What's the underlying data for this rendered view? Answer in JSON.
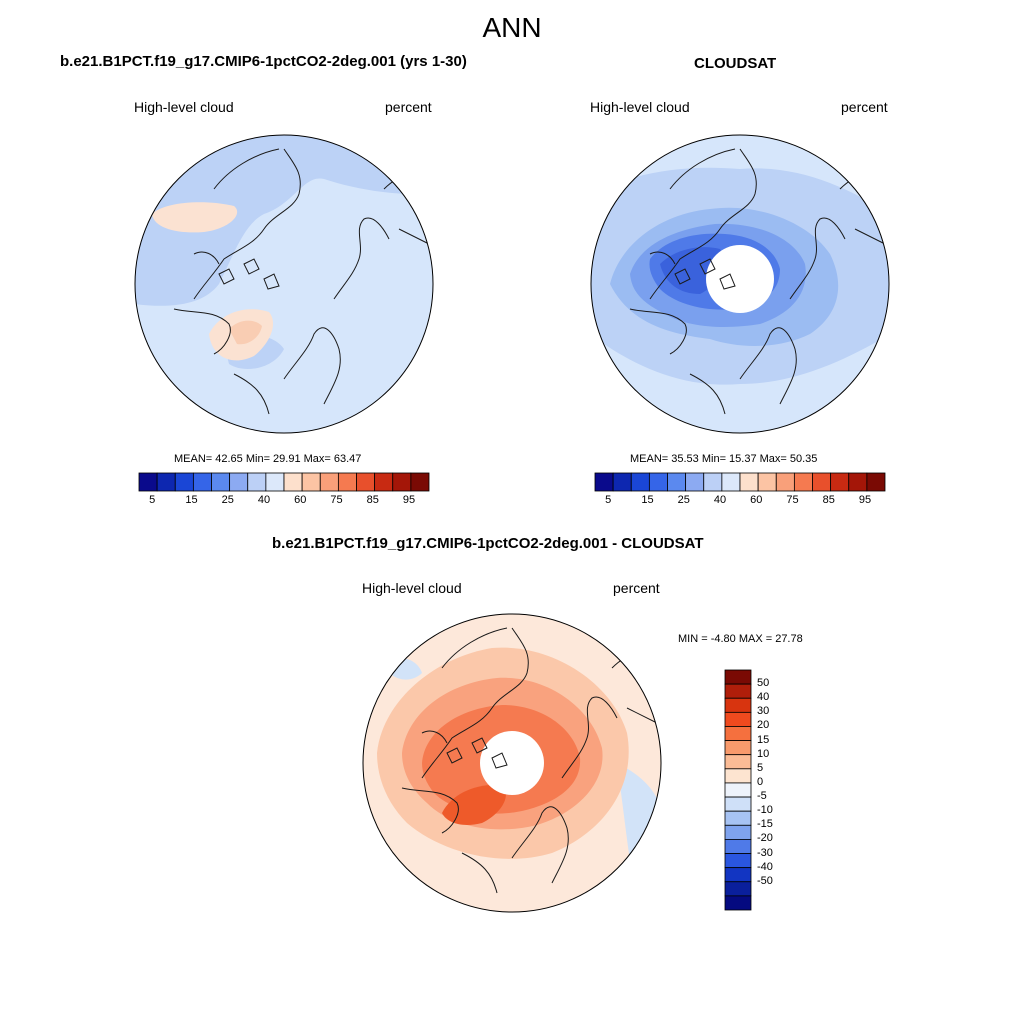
{
  "title": "ANN",
  "panels": [
    {
      "case_title": "b.e21.B1PCT.f19_g17.CMIP6-1pctCO2-2deg.001 (yrs 1-30)",
      "variable": "High-level cloud",
      "units": "percent",
      "stats": "MEAN=  42.65  Min=  29.91  Max=  63.47"
    },
    {
      "case_title": "CLOUDSAT",
      "variable": "High-level cloud",
      "units": "percent",
      "stats": "MEAN=  35.53  Min=  15.37  Max=  50.35"
    },
    {
      "case_title": "b.e21.B1PCT.f19_g17.CMIP6-1pctCO2-2deg.001 - CLOUDSAT",
      "variable": "High-level cloud",
      "units": "percent",
      "stats": "MIN =  -4.80 MAX =  27.78"
    }
  ],
  "colorbar_abs": {
    "ticks": [
      "5",
      "15",
      "25",
      "40",
      "60",
      "75",
      "85",
      "95"
    ],
    "colors": [
      "#0a0a8c",
      "#0d27b0",
      "#1a46d6",
      "#3565e8",
      "#5b89ef",
      "#8caaf2",
      "#bcd0f6",
      "#dce8fa",
      "#fde0cc",
      "#fcc4a4",
      "#f9a07a",
      "#f57a50",
      "#e8502c",
      "#c82a12",
      "#a41608",
      "#7a0a04"
    ]
  },
  "colorbar_diff": {
    "labels": [
      "50",
      "40",
      "30",
      "20",
      "15",
      "10",
      "5",
      "0",
      "-5",
      "-10",
      "-15",
      "-20",
      "-30",
      "-40",
      "-50"
    ],
    "colors": [
      "#7a0a04",
      "#b01e0a",
      "#d8340f",
      "#f04a1e",
      "#f5703e",
      "#f89a6c",
      "#fbbc96",
      "#fde4d0",
      "#eef3fb",
      "#cfe0f8",
      "#a7c3f3",
      "#7fa3ee",
      "#4f7ae8",
      "#2a56e0",
      "#1235c2",
      "#0a1f9c",
      "#050a80"
    ]
  },
  "map_colors": {
    "test_ocean": "#d6e6fb",
    "test_blue": "#bcd2f6",
    "test_warm": "#fbe2d2",
    "test_warm_core": "#f9cdb3",
    "obs_light": "#d6e6fb",
    "obs_mid": "#bcd2f6",
    "obs_band": "#9bbcf2",
    "obs_mid2": "#7aa0ee",
    "obs_strong": "#4f7ae8",
    "obs_core": "#3a62dc",
    "diff_faint": "#fde8da",
    "diff_light": "#fbc8aa",
    "diff_mid": "#f9a27e",
    "diff_strong": "#f57a50",
    "diff_core": "#ee5a2a",
    "diff_blue": "#d2e3f8",
    "coast": "#1a1a1a"
  }
}
